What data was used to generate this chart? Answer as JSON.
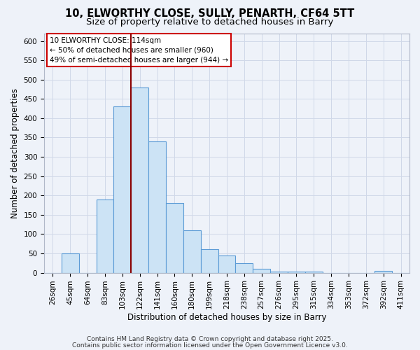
{
  "title1": "10, ELWORTHY CLOSE, SULLY, PENARTH, CF64 5TT",
  "title2": "Size of property relative to detached houses in Barry",
  "xlabel": "Distribution of detached houses by size in Barry",
  "ylabel": "Number of detached properties",
  "bin_labels": [
    "26sqm",
    "45sqm",
    "64sqm",
    "83sqm",
    "103sqm",
    "122sqm",
    "141sqm",
    "160sqm",
    "180sqm",
    "199sqm",
    "218sqm",
    "238sqm",
    "257sqm",
    "276sqm",
    "295sqm",
    "315sqm",
    "334sqm",
    "353sqm",
    "372sqm",
    "392sqm",
    "411sqm"
  ],
  "bar_heights": [
    0,
    50,
    0,
    190,
    430,
    480,
    340,
    180,
    110,
    60,
    45,
    25,
    10,
    3,
    3,
    3,
    0,
    0,
    0,
    5,
    0
  ],
  "bar_color": "#cce3f5",
  "bar_edge_color": "#5b9bd5",
  "ylim": [
    0,
    620
  ],
  "yticks": [
    0,
    50,
    100,
    150,
    200,
    250,
    300,
    350,
    400,
    450,
    500,
    550,
    600
  ],
  "red_line_color": "#8b0000",
  "red_line_x": 4.5,
  "annotation_text_line1": "10 ELWORTHY CLOSE: 114sqm",
  "annotation_text_line2": "← 50% of detached houses are smaller (960)",
  "annotation_text_line3": "49% of semi-detached houses are larger (944) →",
  "footer1": "Contains HM Land Registry data © Crown copyright and database right 2025.",
  "footer2": "Contains public sector information licensed under the Open Government Licence v3.0.",
  "background_color": "#eef2f9",
  "grid_color": "#d0d8e8",
  "title_fontsize": 10.5,
  "subtitle_fontsize": 9.5,
  "axis_label_fontsize": 8.5,
  "tick_fontsize": 7.5,
  "annotation_fontsize": 7.5,
  "footer_fontsize": 6.5
}
